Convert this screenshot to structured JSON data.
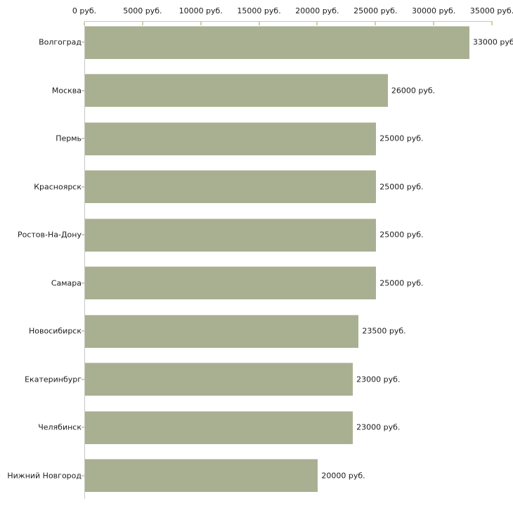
{
  "chart_data": {
    "type": "bar",
    "orientation": "horizontal",
    "title": "",
    "categories": [
      "Волгоград",
      "Москва",
      "Пермь",
      "Красноярск",
      "Ростов-На-Дону",
      "Самара",
      "Новосибирск",
      "Екатеринбург",
      "Челябинск",
      "Нижний Новгород"
    ],
    "values": [
      33000,
      26000,
      25000,
      25000,
      25000,
      25000,
      23500,
      23000,
      23000,
      20000
    ],
    "value_labels": [
      "33000 руб",
      "26000 руб.",
      "25000 руб.",
      "25000 руб.",
      "25000 руб.",
      "25000 руб.",
      "23500 руб.",
      "23000 руб.",
      "23000 руб.",
      "20000 руб."
    ],
    "x_axis": {
      "position": "top",
      "min": 0,
      "max": 35000,
      "ticks": [
        0,
        5000,
        10000,
        15000,
        20000,
        25000,
        30000,
        35000
      ],
      "tick_labels": [
        "0 руб.",
        "5000 руб.",
        "10000 руб.",
        "15000 руб.",
        "20000 руб.",
        "25000 руб.",
        "30000 руб.",
        "35000 руб."
      ]
    },
    "grid": false,
    "legend": false,
    "colors": {
      "bar_fill": "#a9b092",
      "bar_top_highlight": "#ced2bf",
      "axis_line": "#c6c6c6",
      "tick_mark": "#d2cfa8",
      "text": "#1b1b1b",
      "background": "#ffffff"
    }
  }
}
